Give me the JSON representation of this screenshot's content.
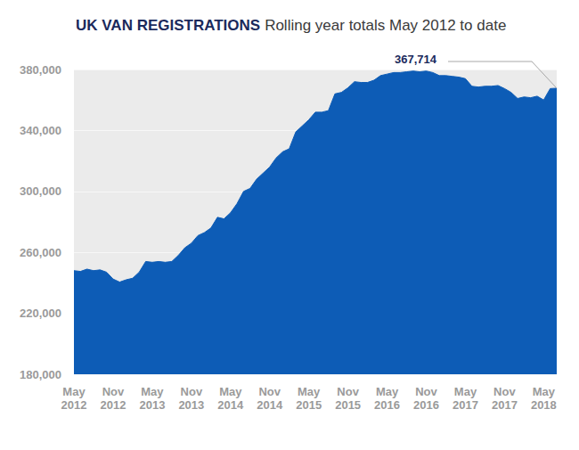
{
  "chart_data": {
    "type": "area",
    "title": "UK VAN REGISTRATIONS",
    "subtitle": "Rolling year totals May 2012 to date",
    "categories": [
      "May 2012",
      null,
      null,
      null,
      null,
      null,
      "Nov 2012",
      null,
      null,
      null,
      null,
      null,
      "May 2013",
      null,
      null,
      null,
      null,
      null,
      "Nov 2013",
      null,
      null,
      null,
      null,
      null,
      "May 2014",
      null,
      null,
      null,
      null,
      null,
      "Nov 2014",
      null,
      null,
      null,
      null,
      null,
      "May 2015",
      null,
      null,
      null,
      null,
      null,
      "Nov 2015",
      null,
      null,
      null,
      null,
      null,
      "May 2016",
      null,
      null,
      null,
      null,
      null,
      "Nov 2016",
      null,
      null,
      null,
      null,
      null,
      "May 2017",
      null,
      null,
      null,
      null,
      null,
      "Nov 2017",
      null,
      null,
      null,
      null,
      null,
      "May 2018",
      null,
      null
    ],
    "values": [
      248000,
      247500,
      249000,
      248000,
      248500,
      247000,
      242500,
      240500,
      242000,
      243000,
      247000,
      254000,
      253500,
      254000,
      253500,
      254000,
      258000,
      263000,
      266000,
      271000,
      273000,
      276000,
      283000,
      282000,
      286000,
      292000,
      300000,
      302000,
      308000,
      312000,
      316000,
      322000,
      326000,
      328000,
      339000,
      343000,
      347000,
      352000,
      352000,
      353000,
      364000,
      365000,
      368000,
      372000,
      371500,
      371500,
      373000,
      376000,
      377000,
      378000,
      378000,
      378500,
      379000,
      378500,
      379000,
      378000,
      376000,
      376000,
      375500,
      375000,
      374000,
      369000,
      368500,
      369000,
      369000,
      369500,
      367500,
      365000,
      361000,
      362000,
      361500,
      362500,
      360000,
      367500,
      367714
    ],
    "color": "#0d5cb6",
    "ylim": [
      180000,
      380000
    ],
    "yticks": [
      {
        "value": 180000,
        "label": "180,000"
      },
      {
        "value": 220000,
        "label": "220,000"
      },
      {
        "value": 260000,
        "label": "260,000"
      },
      {
        "value": 300000,
        "label": "300,000"
      },
      {
        "value": 340000,
        "label": "340,000"
      },
      {
        "value": 380000,
        "label": "380,000"
      }
    ],
    "grid": true,
    "annotations": [
      {
        "text": "367,714",
        "value": 367714
      }
    ]
  }
}
